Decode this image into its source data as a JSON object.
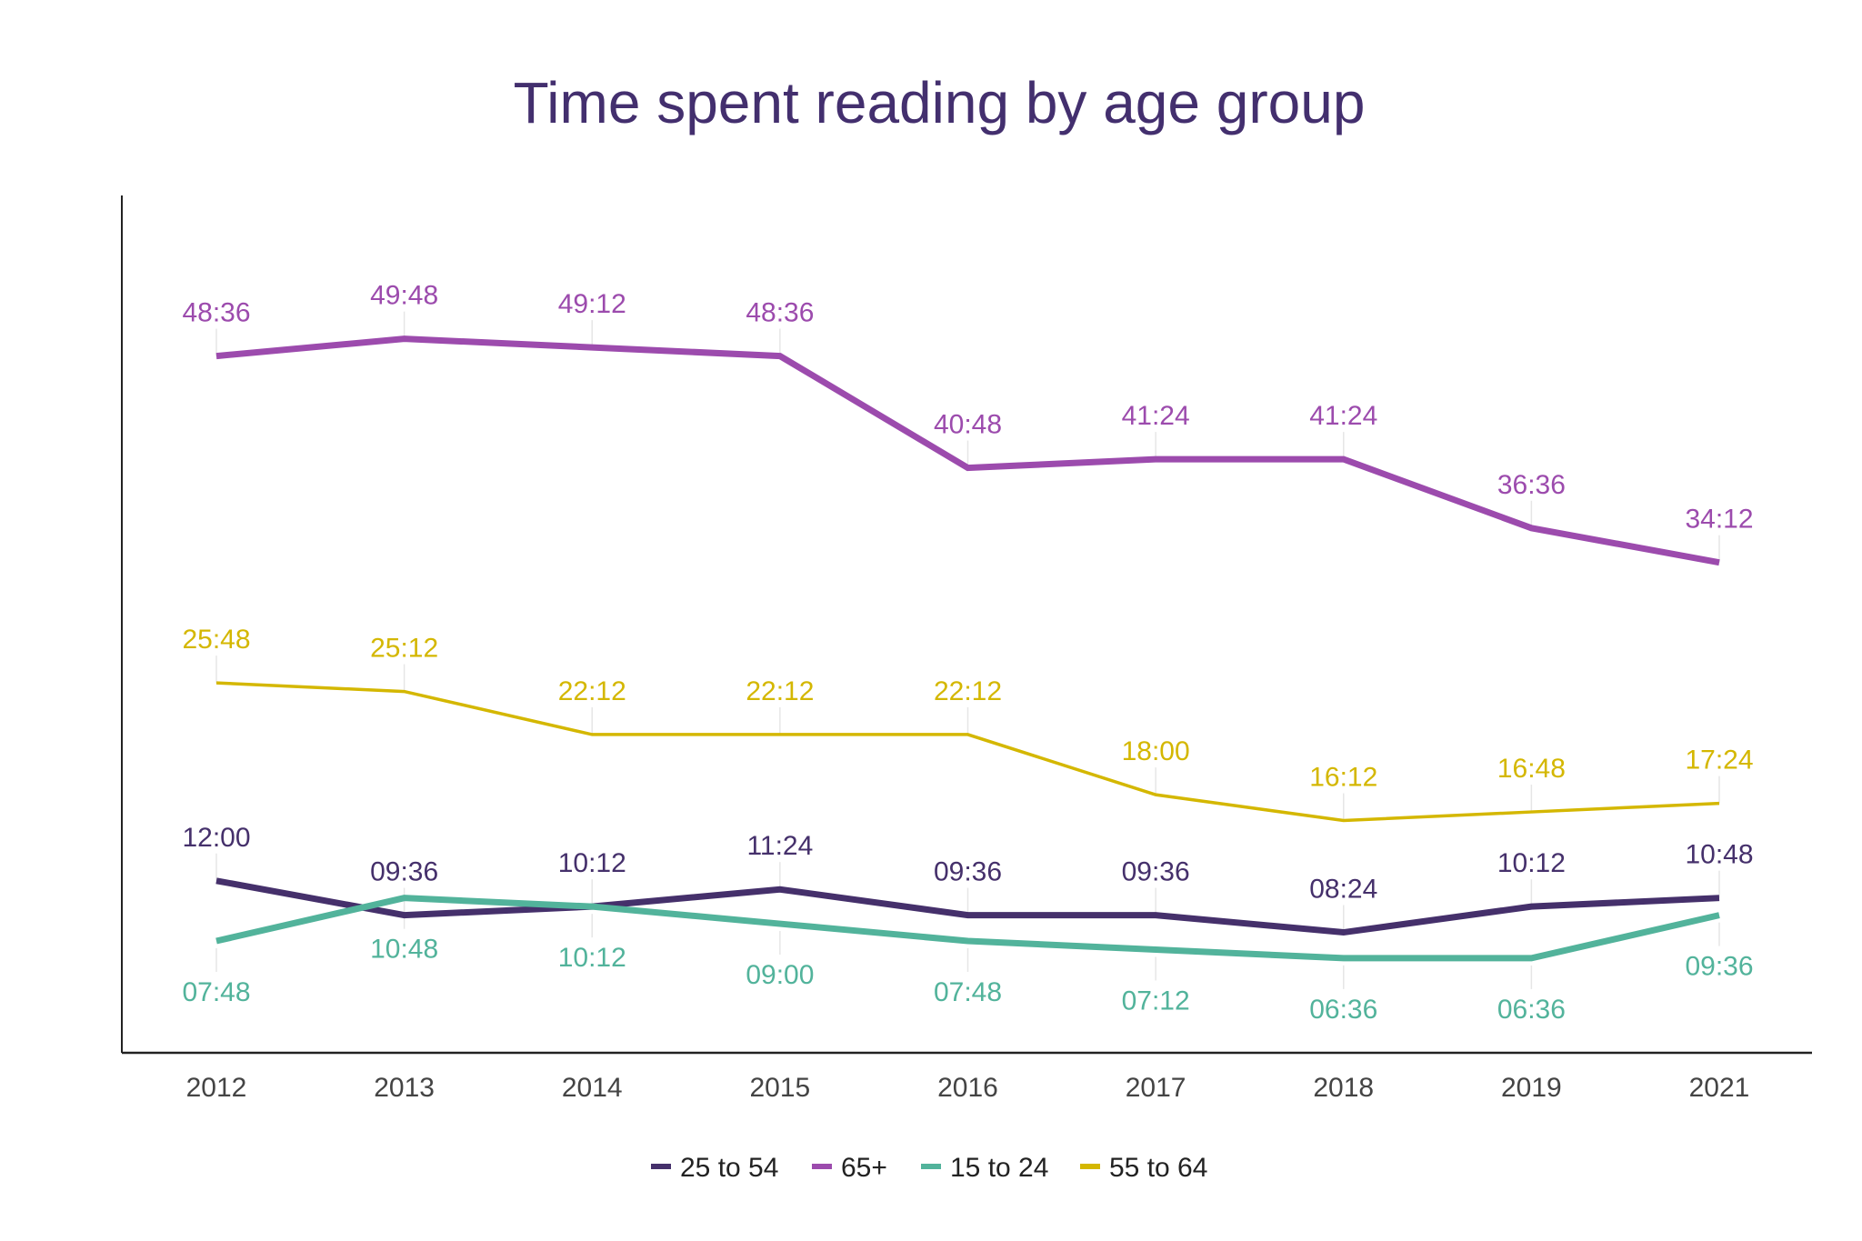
{
  "chart_data": {
    "type": "line",
    "title": "Time spent reading by age group",
    "xlabel": "",
    "ylabel": "",
    "categories": [
      "2012",
      "2013",
      "2014",
      "2015",
      "2016",
      "2017",
      "2018",
      "2019",
      "2021"
    ],
    "ylim": [
      0,
      56
    ],
    "value_unit_note_hidden": null,
    "grid": false,
    "legend_position": "bottom",
    "series": [
      {
        "name": "25 to 54",
        "color": "#45306b",
        "label_position": "above",
        "values": [
          12.0,
          9.6,
          10.2,
          11.4,
          9.6,
          9.6,
          8.4,
          10.2,
          10.8
        ],
        "labels": [
          "12:00",
          "09:36",
          "10:12",
          "11:24",
          "09:36",
          "09:36",
          "08:24",
          "10:12",
          "10:48"
        ]
      },
      {
        "name": "65+",
        "color": "#9c4bad",
        "label_position": "above",
        "values": [
          48.6,
          49.8,
          49.2,
          48.6,
          40.8,
          41.4,
          41.4,
          36.6,
          34.2
        ],
        "labels": [
          "48:36",
          "49:48",
          "49:12",
          "48:36",
          "40:48",
          "41:24",
          "41:24",
          "36:36",
          "34:12"
        ]
      },
      {
        "name": "15 to 24",
        "color": "#52b39b",
        "label_position": "below",
        "values": [
          7.8,
          10.8,
          10.2,
          9.0,
          7.8,
          7.2,
          6.6,
          6.6,
          9.6
        ],
        "labels": [
          "07:48",
          "10:48",
          "10:12",
          "09:00",
          "07:48",
          "07:12",
          "06:36",
          "06:36",
          "09:36"
        ]
      },
      {
        "name": "55 to 64",
        "color": "#d4b700",
        "label_position": "above",
        "values": [
          25.8,
          25.2,
          22.2,
          22.2,
          22.2,
          18.0,
          16.2,
          16.8,
          17.4
        ],
        "labels": [
          "25:48",
          "25:12",
          "22:12",
          "22:12",
          "22:12",
          "18:00",
          "16:12",
          "16:48",
          "17:24"
        ]
      }
    ]
  }
}
